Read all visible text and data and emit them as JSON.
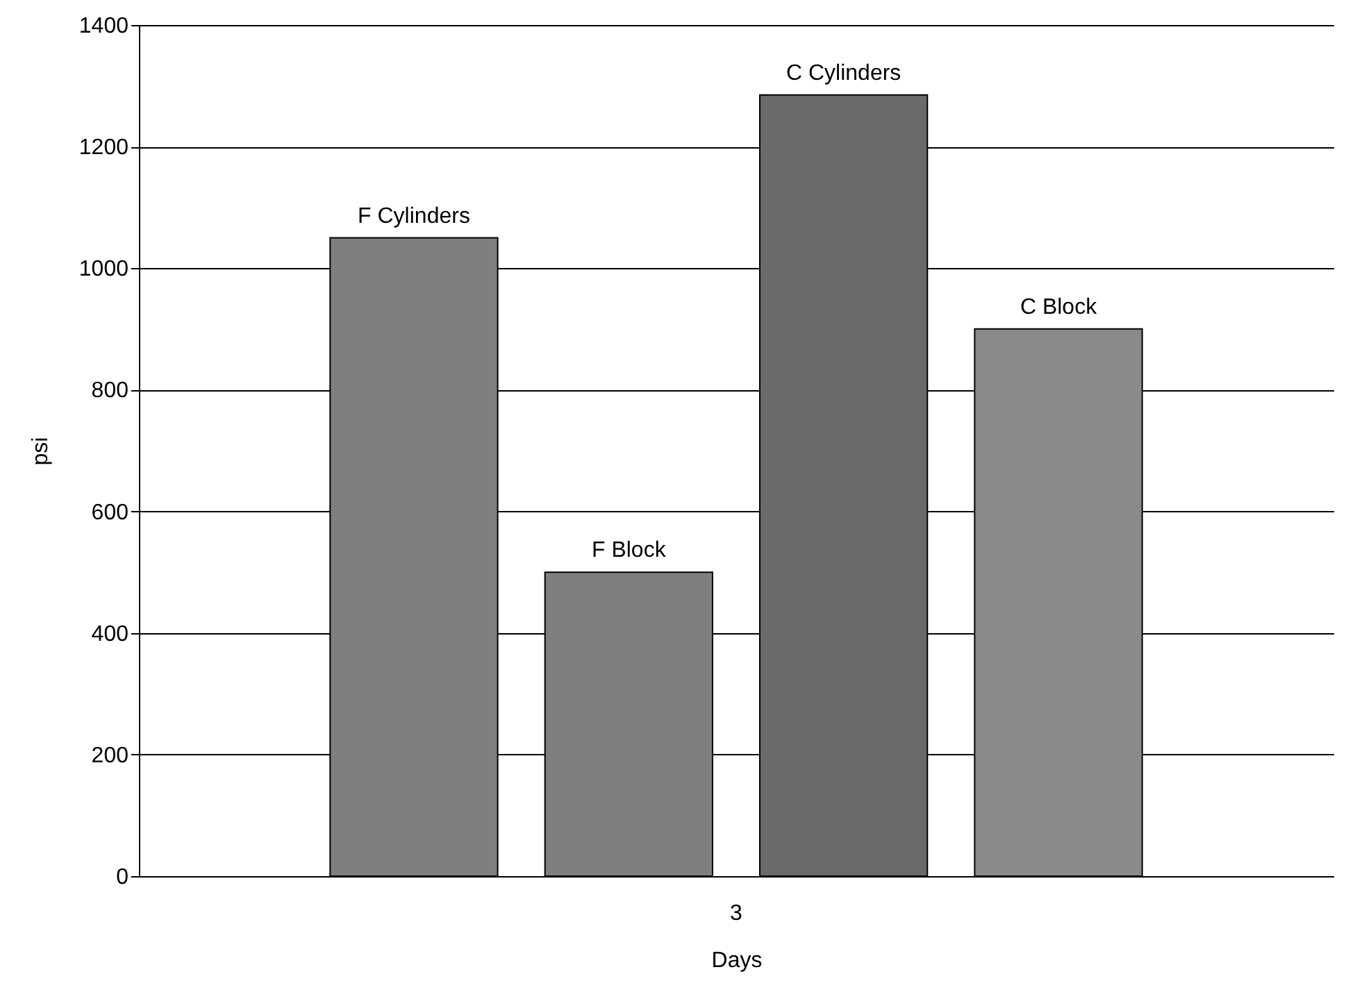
{
  "chart_data": {
    "type": "bar",
    "xlabel": "Days",
    "ylabel": "psi",
    "categories": [
      "3"
    ],
    "series": [
      {
        "name": "F Cylinders",
        "color": "#7f7f7f",
        "values": [
          1050
        ]
      },
      {
        "name": "F Block",
        "color": "#7f7f7f",
        "values": [
          500
        ]
      },
      {
        "name": "C Cylinders",
        "color": "#6a6a6a",
        "values": [
          1285
        ]
      },
      {
        "name": "C Block",
        "color": "#8a8a8a",
        "values": [
          900
        ]
      }
    ],
    "ylim": [
      0,
      1400
    ],
    "yticks": [
      0,
      200,
      400,
      600,
      800,
      1000,
      1200,
      1400
    ],
    "grid": "y"
  }
}
